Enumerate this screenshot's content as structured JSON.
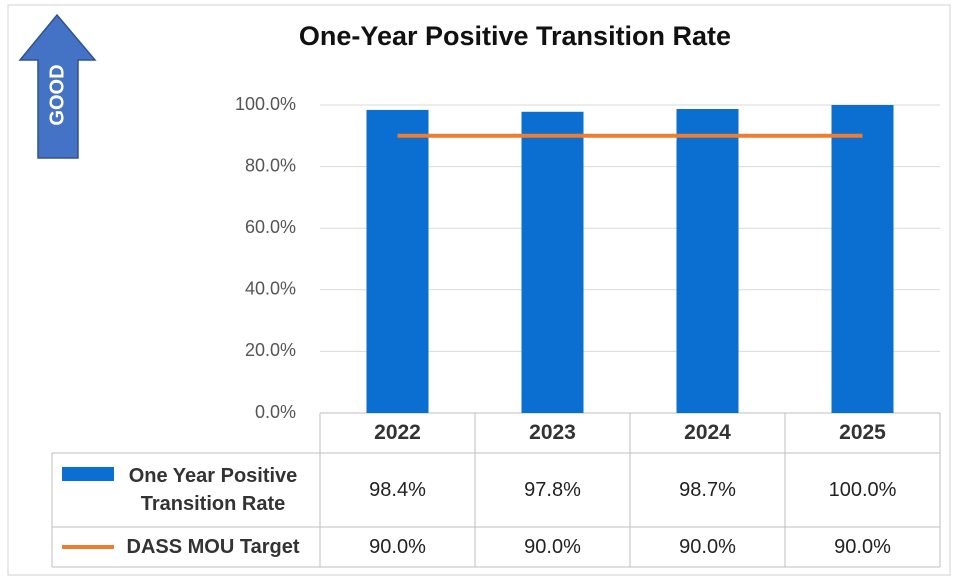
{
  "chart_data": {
    "type": "bar",
    "title": "One-Year Positive Transition Rate",
    "annotation": "GOOD",
    "categories": [
      "2022",
      "2023",
      "2024",
      "2025"
    ],
    "series": [
      {
        "name": "One Year Positive Transition Rate",
        "type": "bar",
        "color": "#0a6fd1",
        "values": [
          98.4,
          97.8,
          98.7,
          100.0
        ],
        "value_labels": [
          "98.4%",
          "97.8%",
          "98.7%",
          "100.0%"
        ]
      },
      {
        "name": "DASS MOU Target",
        "type": "line",
        "color": "#ed7d31",
        "values": [
          90.0,
          90.0,
          90.0,
          90.0
        ],
        "value_labels": [
          "90.0%",
          "90.0%",
          "90.0%",
          "90.0%"
        ]
      }
    ],
    "ylim": [
      0,
      100
    ],
    "yticks": [
      {
        "value": 0,
        "label": "0.0%"
      },
      {
        "value": 20,
        "label": "20.0%"
      },
      {
        "value": 40,
        "label": "40.0%"
      },
      {
        "value": 60,
        "label": "60.0%"
      },
      {
        "value": 80,
        "label": "80.0%"
      },
      {
        "value": 100,
        "label": "100.0%"
      }
    ],
    "grid": true
  }
}
